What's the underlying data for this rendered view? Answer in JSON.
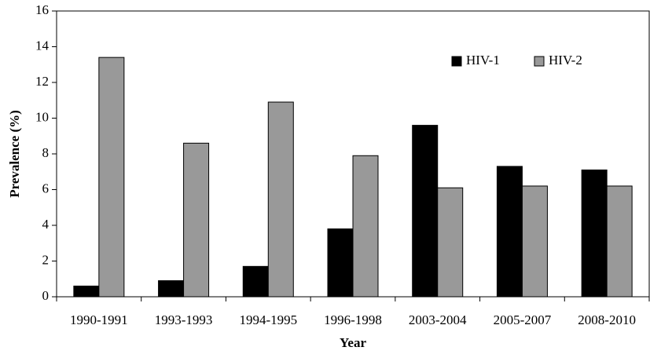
{
  "chart_data": {
    "type": "bar",
    "x_label": "Year",
    "y_label": "Prevalence (%)",
    "categories": [
      "1990-1991",
      "1993-1993",
      "1994-1995",
      "1996-1998",
      "2003-2004",
      "2005-2007",
      "2008-2010"
    ],
    "series": [
      {
        "name": "HIV-1",
        "color": "#000000",
        "values": [
          0.6,
          0.9,
          1.7,
          3.8,
          9.6,
          7.3,
          7.1
        ]
      },
      {
        "name": "HIV-2",
        "color": "#999999",
        "values": [
          13.4,
          8.6,
          10.9,
          7.9,
          6.1,
          6.2,
          6.2
        ]
      }
    ],
    "ylim": [
      0,
      16
    ],
    "yticks": [
      0,
      2,
      4,
      6,
      8,
      10,
      12,
      14,
      16
    ],
    "grid": false,
    "legend": "upper right"
  }
}
